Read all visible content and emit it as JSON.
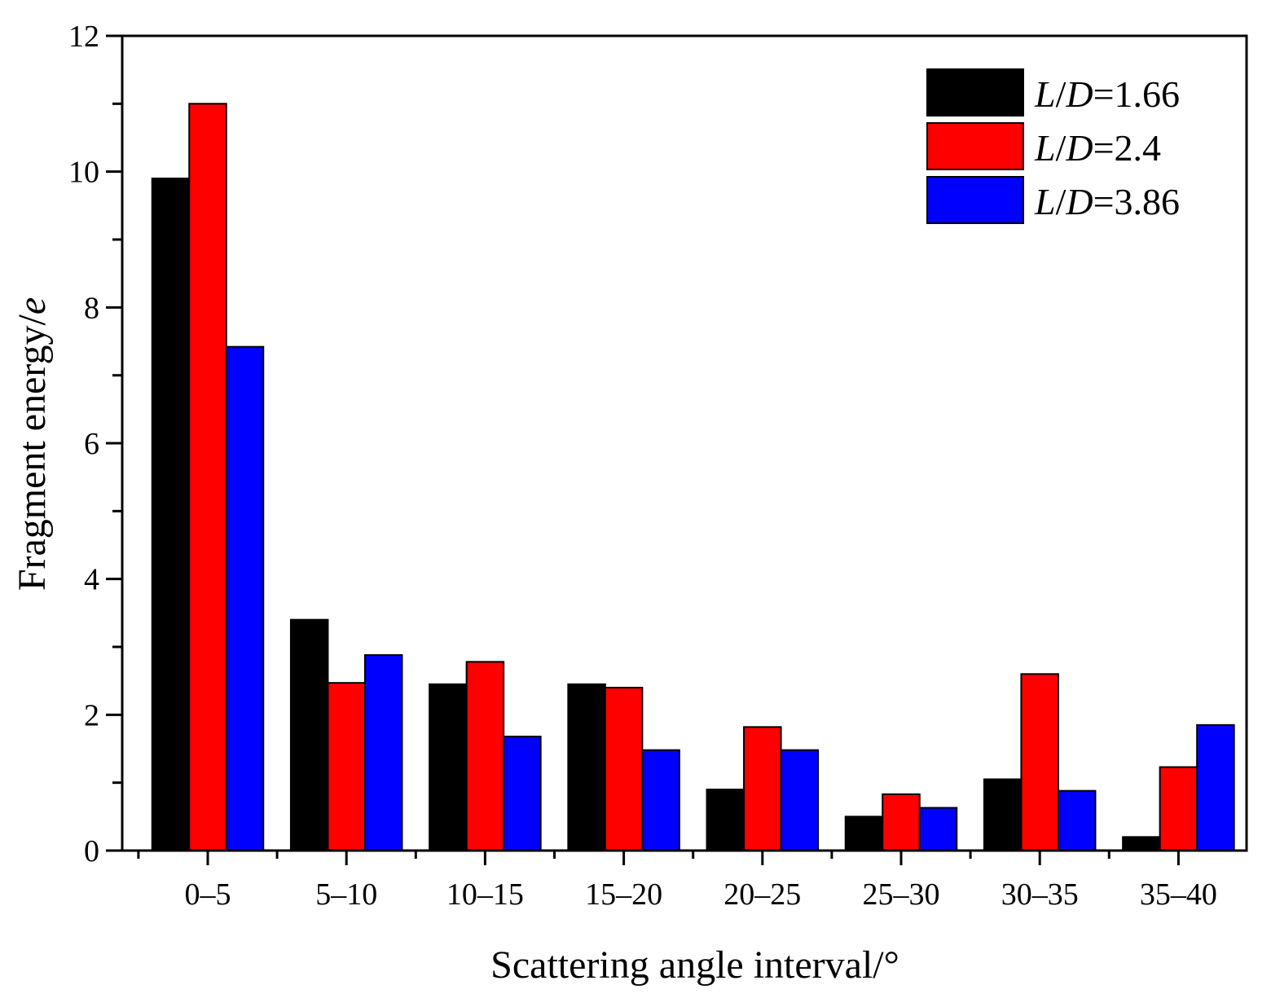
{
  "chart_data": {
    "type": "bar",
    "title": "",
    "xlabel": "Scattering angle interval/°",
    "ylabel": {
      "text": "Fragment energy/",
      "italic_suffix": "e"
    },
    "categories": [
      "0–5",
      "5–10",
      "10–15",
      "15–20",
      "20–25",
      "25–30",
      "30–35",
      "35–40"
    ],
    "ylim": [
      0,
      12
    ],
    "yticks": [
      0,
      2,
      4,
      6,
      8,
      10,
      12
    ],
    "grid": false,
    "legend_position": "top-right",
    "series": [
      {
        "name": "L/D=1.66",
        "label_parts": {
          "a": "L",
          "sep": "/",
          "b": "D",
          "rest": "=1.66"
        },
        "color": "#000000",
        "values": [
          9.9,
          3.4,
          2.45,
          2.45,
          0.9,
          0.5,
          1.05,
          0.2
        ]
      },
      {
        "name": "L/D=2.4",
        "label_parts": {
          "a": "L",
          "sep": "/",
          "b": "D",
          "rest": "=2.4"
        },
        "color": "#ff0000",
        "values": [
          11.0,
          2.47,
          2.78,
          2.4,
          1.82,
          0.83,
          2.6,
          1.23
        ]
      },
      {
        "name": "L/D=3.86",
        "label_parts": {
          "a": "L",
          "sep": "/",
          "b": "D",
          "rest": "=3.86"
        },
        "color": "#0000ff",
        "values": [
          7.42,
          2.88,
          1.68,
          1.48,
          1.48,
          0.63,
          0.88,
          1.85
        ]
      }
    ]
  }
}
